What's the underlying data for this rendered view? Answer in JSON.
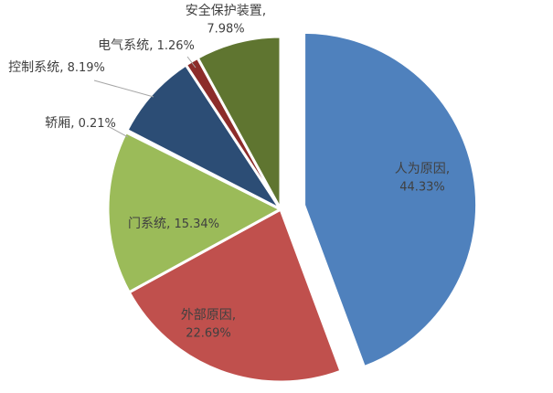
{
  "chart_data": {
    "type": "pie",
    "categories": [
      "人为原因,",
      "外部原因,",
      "门系统,",
      "轿厢,",
      "控制系统,",
      "电气系统,",
      "安全保护装置,"
    ],
    "values": [
      44.33,
      22.69,
      15.34,
      0.21,
      8.19,
      1.26,
      7.98
    ],
    "value_labels": [
      "44.33%",
      "22.69%",
      "15.34%",
      "0.21%",
      "8.19%",
      "1.26%",
      "7.98%"
    ],
    "colors": [
      "#4f81bd",
      "#c0504d",
      "#9bbb59",
      "#8064a2",
      "#2c4d75",
      "#8c2c2a",
      "#5f7530"
    ],
    "exploded": [
      0
    ]
  }
}
